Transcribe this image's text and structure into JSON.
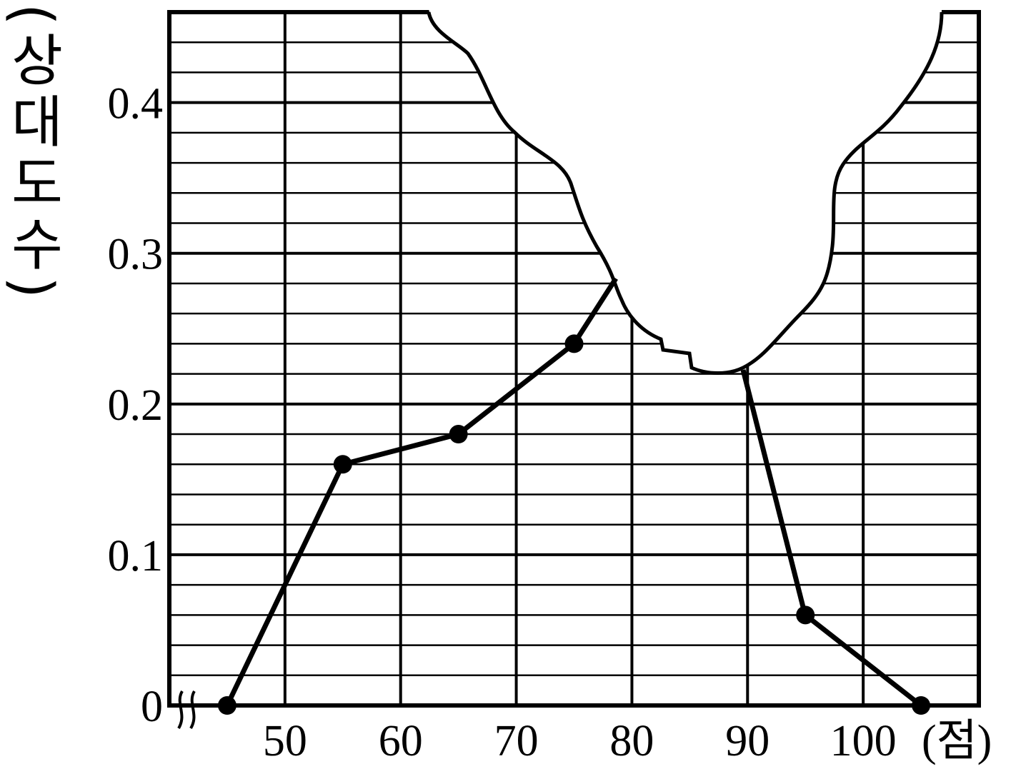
{
  "chart_data": {
    "type": "line",
    "x_label": "(점)",
    "y_label": "(상대도수)",
    "x": [
      45,
      55,
      65,
      75,
      85,
      95,
      105
    ],
    "series": [
      {
        "color": "#000000",
        "values": [
          0,
          0.16,
          0.18,
          0.24,
          null,
          0.06,
          0
        ]
      }
    ],
    "xlim": [
      40,
      110
    ],
    "xticks": [
      50,
      60,
      70,
      80,
      90,
      100
    ],
    "ylim": [
      0,
      0.46
    ],
    "yticks": [
      0,
      0.1,
      0.2,
      0.3,
      0.4
    ],
    "grid": true,
    "minor_grid_step": 0.02
  }
}
